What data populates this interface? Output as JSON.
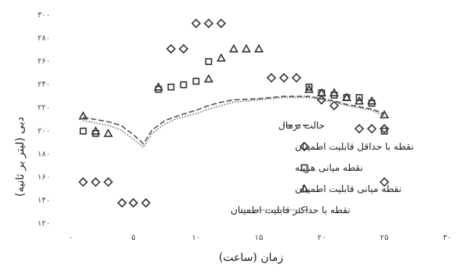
{
  "chart_data": {
    "type": "scatter",
    "xlabel": "زمان (ساعت)",
    "ylabel": "دبی (لیتر بر ثانیه)",
    "xlim": [
      0,
      30
    ],
    "ylim": [
      120,
      300
    ],
    "x_ticks": [
      0,
      5,
      10,
      15,
      20,
      25,
      30
    ],
    "x_tick_labels": [
      "۰",
      "۵",
      "۱۰",
      "۱۵",
      "۲۰",
      "۲۵",
      "۳۰"
    ],
    "y_ticks": [
      120,
      140,
      160,
      180,
      200,
      220,
      240,
      260,
      280,
      300
    ],
    "y_tick_labels": [
      "۱۲۰",
      "۱۴۰",
      "۱۶۰",
      "۱۸۰",
      "۲۰۰",
      "۲۲۰",
      "۲۴۰",
      "۲۶۰",
      "۲۸۰",
      "۳۰۰"
    ],
    "grid": false,
    "legend_position": "center",
    "series": [
      {
        "name": "حالت نرمال",
        "style": "dashed-line",
        "color": "#555555",
        "points": [
          [
            1,
            211
          ],
          [
            2,
            209
          ],
          [
            3,
            207
          ],
          [
            4,
            204
          ],
          [
            5,
            196
          ],
          [
            5.8,
            188
          ],
          [
            6.5,
            200
          ],
          [
            7.5,
            208
          ],
          [
            8.5,
            212
          ],
          [
            10,
            217
          ],
          [
            11,
            221
          ],
          [
            12,
            224
          ],
          [
            13,
            226
          ],
          [
            15,
            227
          ],
          [
            17,
            229
          ],
          [
            19,
            229
          ],
          [
            20,
            227
          ],
          [
            21,
            225
          ],
          [
            22,
            222
          ],
          [
            23,
            220
          ],
          [
            24,
            218
          ],
          [
            25,
            214
          ]
        ]
      },
      {
        "name": "نقطه با حداقل قابلیت اطمینان",
        "style": "diamond",
        "color": "#333333",
        "points": [
          [
            1,
            155
          ],
          [
            2,
            155
          ],
          [
            3,
            155
          ],
          [
            4.1,
            137
          ],
          [
            5,
            137
          ],
          [
            6,
            137
          ],
          [
            8,
            270
          ],
          [
            9,
            270
          ],
          [
            10,
            292
          ],
          [
            11,
            292
          ],
          [
            12,
            292
          ],
          [
            16,
            245
          ],
          [
            17,
            245
          ],
          [
            18,
            245
          ],
          [
            20,
            226
          ],
          [
            21,
            221
          ],
          [
            23,
            201
          ],
          [
            24,
            201
          ],
          [
            25,
            201
          ],
          [
            25,
            155
          ]
        ]
      },
      {
        "name": "نقطه میانی هزینه",
        "style": "square",
        "color": "#333333",
        "points": [
          [
            1,
            199
          ],
          [
            2,
            197
          ],
          [
            7,
            235
          ],
          [
            8,
            237
          ],
          [
            9,
            239
          ],
          [
            10,
            242
          ],
          [
            11,
            259
          ],
          [
            19,
            237
          ],
          [
            20,
            232
          ],
          [
            21,
            230
          ],
          [
            22,
            228
          ],
          [
            23,
            228
          ],
          [
            24,
            223
          ],
          [
            25,
            199
          ]
        ]
      },
      {
        "name": "نقطه میانی قابلیت اطمینان",
        "style": "triangle",
        "color": "#333333",
        "points": [
          [
            1,
            212
          ],
          [
            2,
            199
          ],
          [
            3,
            197
          ],
          [
            7,
            237
          ],
          [
            11,
            244
          ],
          [
            12,
            262
          ],
          [
            13,
            270
          ],
          [
            14,
            270
          ],
          [
            15,
            270
          ],
          [
            19,
            235
          ],
          [
            20,
            232
          ],
          [
            21,
            232
          ],
          [
            22,
            228
          ],
          [
            23,
            225
          ],
          [
            24,
            225
          ],
          [
            25,
            213
          ]
        ]
      },
      {
        "name": "نقطه با حداکثر قابلیت اطمینان",
        "style": "dotted-line",
        "color": "#666666",
        "points": [
          [
            1,
            208
          ],
          [
            2,
            206
          ],
          [
            3,
            204
          ],
          [
            4,
            200
          ],
          [
            5,
            192
          ],
          [
            5.8,
            185
          ],
          [
            6.5,
            197
          ],
          [
            7.5,
            205
          ],
          [
            8.5,
            210
          ],
          [
            10,
            214
          ],
          [
            11,
            218
          ],
          [
            12,
            221
          ],
          [
            13,
            224
          ],
          [
            15,
            226
          ],
          [
            17,
            228
          ],
          [
            19,
            228
          ],
          [
            20,
            226
          ],
          [
            21,
            224
          ],
          [
            22,
            221
          ],
          [
            23,
            219
          ],
          [
            24,
            217
          ],
          [
            25,
            212
          ]
        ]
      }
    ]
  }
}
